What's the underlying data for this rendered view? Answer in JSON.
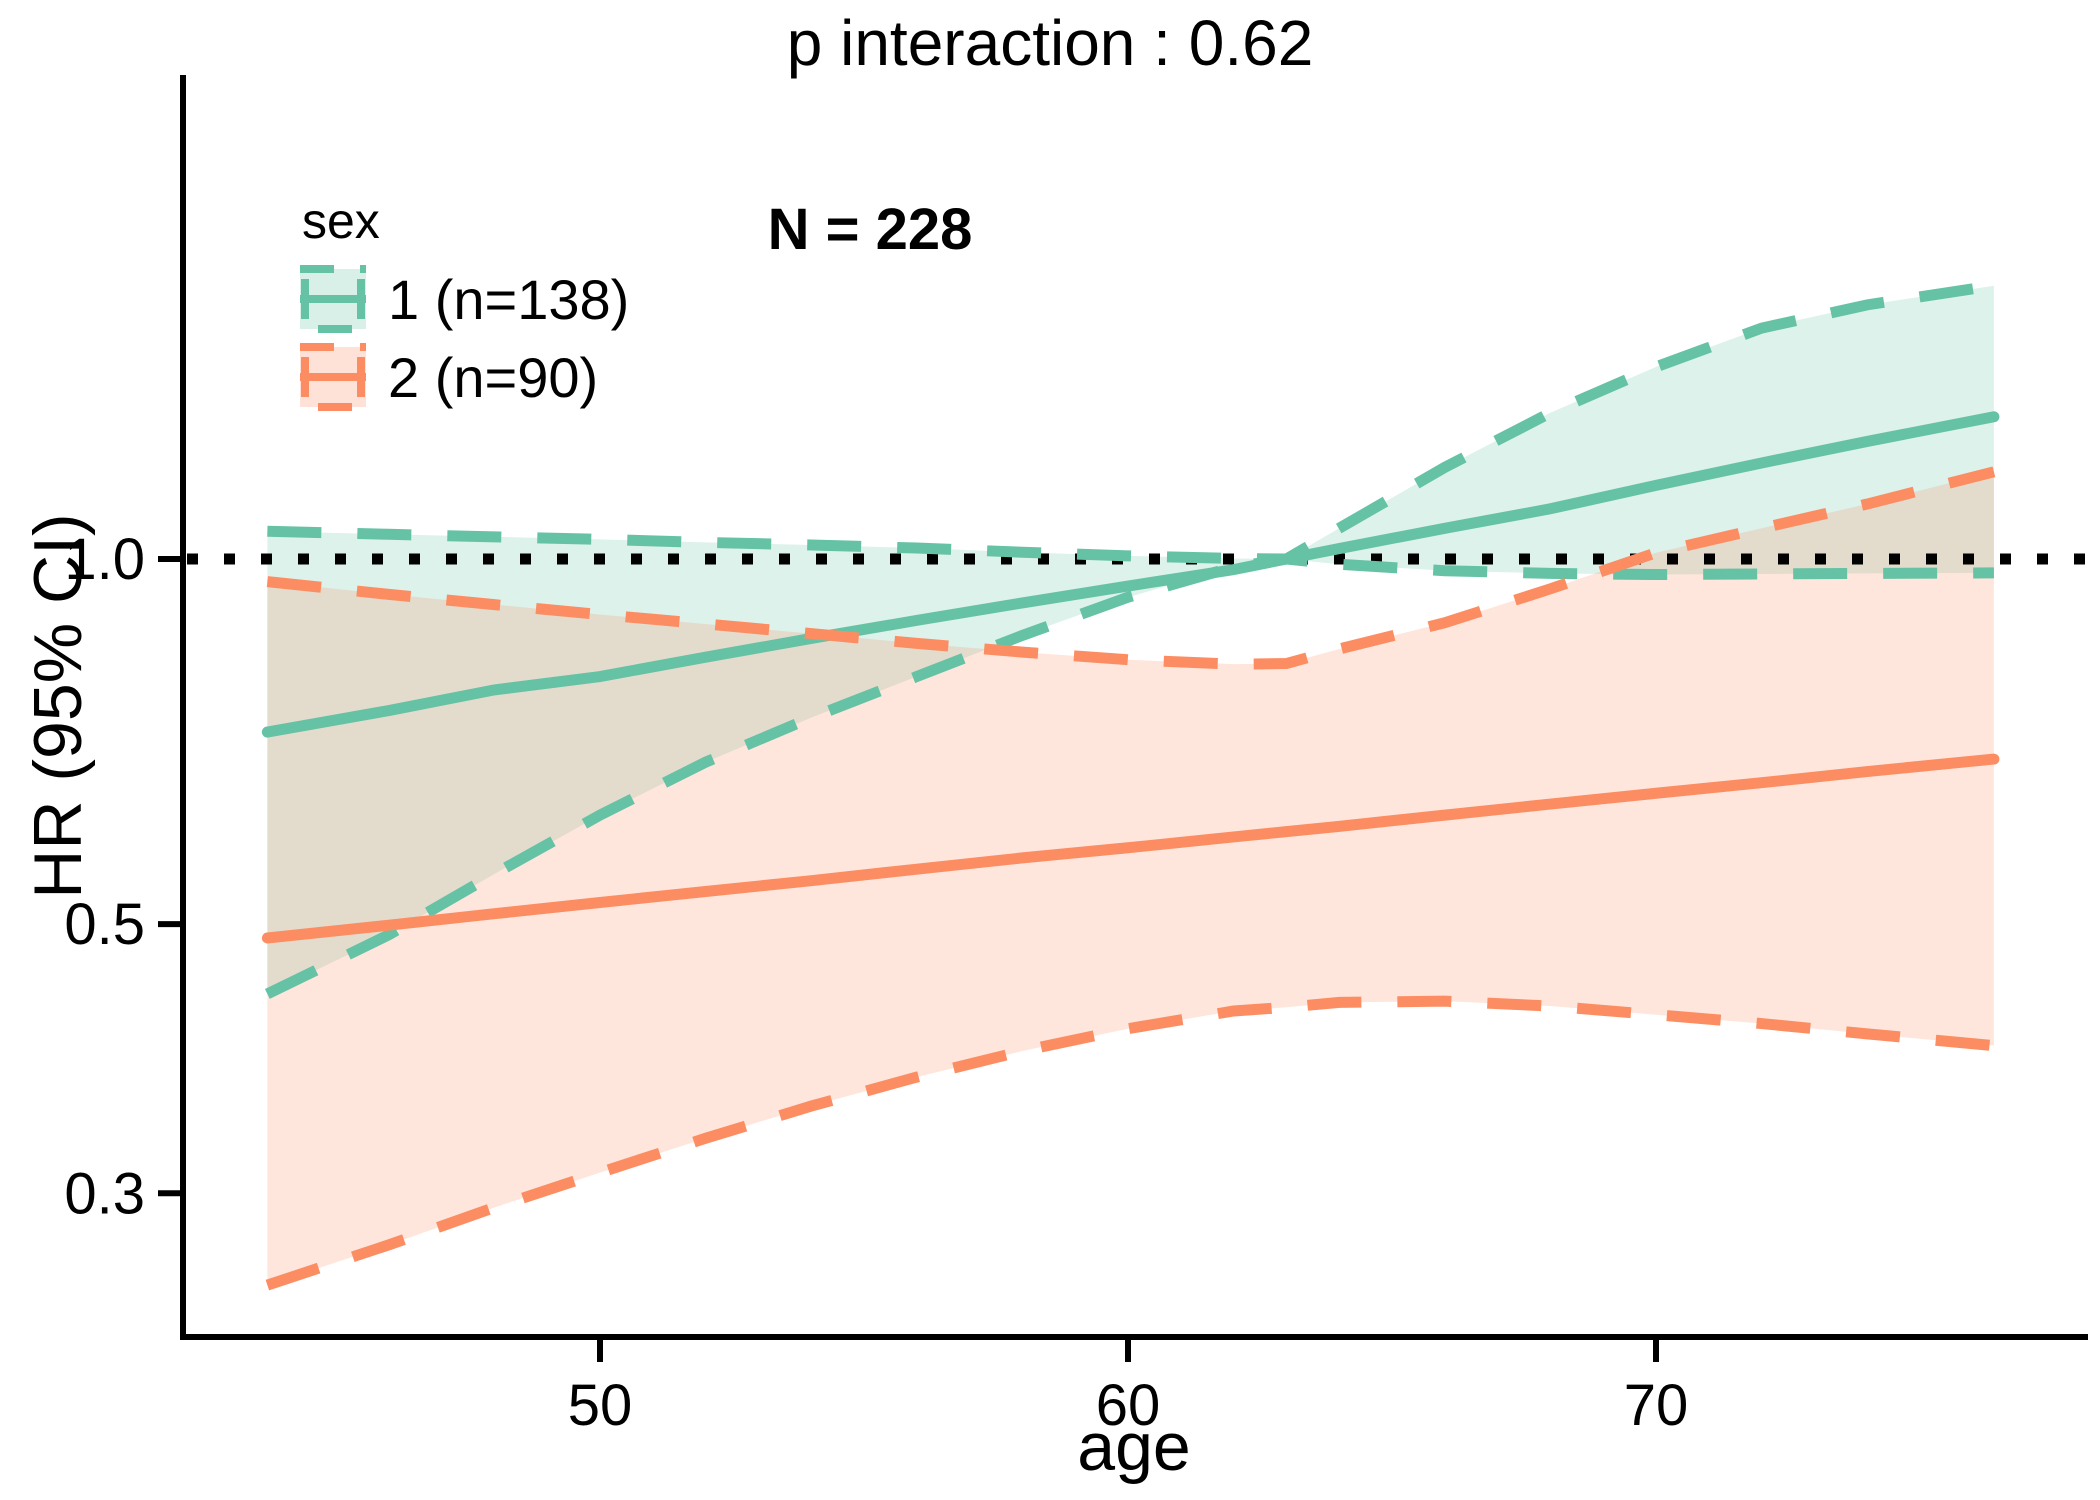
{
  "chart_data": {
    "type": "line",
    "title": "p interaction : 0.62",
    "annotation": "N = 228",
    "xlabel": "age",
    "ylabel": "HR (95% CI)",
    "y_scale": "log10",
    "grid": false,
    "reference_line_y": 1.0,
    "x_range": [
      43.7,
      76.4
    ],
    "y_range": [
      0.23,
      2.5
    ],
    "x_ticks": [
      {
        "value": 50,
        "label": "50"
      },
      {
        "value": 60,
        "label": "60"
      },
      {
        "value": 70,
        "label": "70"
      }
    ],
    "y_ticks": [
      {
        "value": 1.0,
        "label": "1.0"
      },
      {
        "value": 0.5,
        "label": "0.5"
      },
      {
        "value": 0.3,
        "label": "0.3"
      }
    ],
    "legend": {
      "title": "sex",
      "position": "inside-top-left",
      "entries": [
        {
          "label": "1 (n=138)",
          "color": "#66C2A5"
        },
        {
          "label": "2 (n=90)",
          "color": "#FC8D62"
        }
      ]
    },
    "colors": {
      "group1": "#66C2A5",
      "group2": "#FC8D62",
      "reference": "#000000",
      "fill_opacity": 0.22
    },
    "x": [
      43.7,
      46,
      48,
      50,
      52,
      54,
      56,
      58,
      60,
      62,
      63,
      64,
      66,
      68,
      70,
      72,
      74,
      76.4
    ],
    "series": [
      {
        "name": "1 (n=138)",
        "color": "#66C2A5",
        "hr": [
          0.72,
          0.75,
          0.78,
          0.8,
          0.83,
          0.86,
          0.89,
          0.92,
          0.95,
          0.98,
          1.0,
          1.02,
          1.06,
          1.1,
          1.15,
          1.2,
          1.25,
          1.31
        ],
        "ci_upper": [
          1.054,
          1.048,
          1.043,
          1.038,
          1.032,
          1.027,
          1.021,
          1.013,
          1.006,
          1.001,
          1.0,
          1.06,
          1.19,
          1.32,
          1.44,
          1.55,
          1.62,
          1.68
        ],
        "ci_lower": [
          0.438,
          0.49,
          0.55,
          0.615,
          0.68,
          0.74,
          0.8,
          0.865,
          0.93,
          0.985,
          1.0,
          0.99,
          0.978,
          0.973,
          0.971,
          0.972,
          0.973,
          0.974
        ]
      },
      {
        "name": "2 (n=90)",
        "color": "#FC8D62",
        "hr": [
          0.487,
          0.499,
          0.51,
          0.521,
          0.532,
          0.543,
          0.555,
          0.567,
          0.578,
          0.59,
          0.596,
          0.602,
          0.615,
          0.628,
          0.641,
          0.654,
          0.668,
          0.684
        ],
        "ci_upper": [
          0.958,
          0.935,
          0.917,
          0.9,
          0.884,
          0.868,
          0.852,
          0.838,
          0.826,
          0.819,
          0.82,
          0.843,
          0.886,
          0.945,
          1.012,
          1.06,
          1.11,
          1.18
        ],
        "ci_lower": [
          0.252,
          0.272,
          0.292,
          0.312,
          0.333,
          0.354,
          0.374,
          0.393,
          0.41,
          0.424,
          0.427,
          0.431,
          0.432,
          0.428,
          0.421,
          0.414,
          0.406,
          0.397
        ]
      }
    ]
  }
}
